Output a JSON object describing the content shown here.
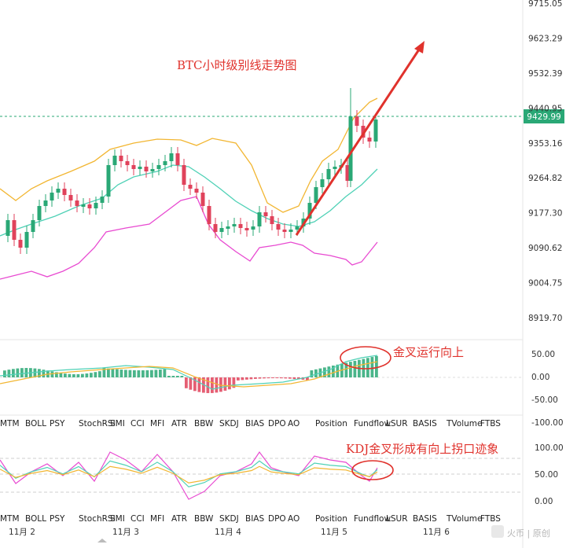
{
  "chart_data": {
    "type": "candlestick",
    "title": "BTC小时级别线走势图",
    "current_price": "9429.99",
    "price_axis": {
      "ticks": [
        "9715.05",
        "9623.29",
        "9532.39",
        "9440.95",
        "9353.16",
        "9264.82",
        "9177.30",
        "9090.62",
        "9004.75",
        "8919.70"
      ]
    },
    "x_axis": {
      "ticks": [
        "11月 2",
        "11月 3",
        "11月 4",
        "11月 5",
        "11月 6"
      ]
    },
    "macd_axis": {
      "ticks": [
        "50.00",
        "0.00",
        "-50.00",
        "-100.00"
      ]
    },
    "kdj_axis": {
      "ticks": [
        "100.00",
        "50.00",
        "0.00"
      ]
    },
    "indicators_row1": [
      "MTM",
      "BOLL",
      "PSY",
      "StochRSI",
      "SMI",
      "CCI",
      "MFI",
      "ATR",
      "BBW",
      "SKDJ",
      "BIAS",
      "DPO",
      "AO",
      "Position",
      "Fundflow",
      "LSUR",
      "BASIS",
      "TVolume",
      "FTBS"
    ],
    "indicators_row2": [
      "MTM",
      "BOLL",
      "PSY",
      "StochRSI",
      "SMI",
      "CCI",
      "MFI",
      "ATR",
      "BBW",
      "SKDJ",
      "BIAS",
      "DPO",
      "AO",
      "Position",
      "Fundflow",
      "LSUR",
      "BASIS",
      "TVolume",
      "FTBS"
    ],
    "annotations": {
      "macd": "金叉运行向上",
      "kdj": "KDJ金叉形成有向上拐口迹象"
    },
    "watermark": "火币 | 原创",
    "colors": {
      "up": "#2aa876",
      "down": "#e0425b",
      "boll_upper": "#f2b632",
      "boll_mid": "#4fd1b6",
      "boll_lower": "#e84ad1",
      "arrow": "#e0322c",
      "price_line": "#2aa876"
    }
  }
}
